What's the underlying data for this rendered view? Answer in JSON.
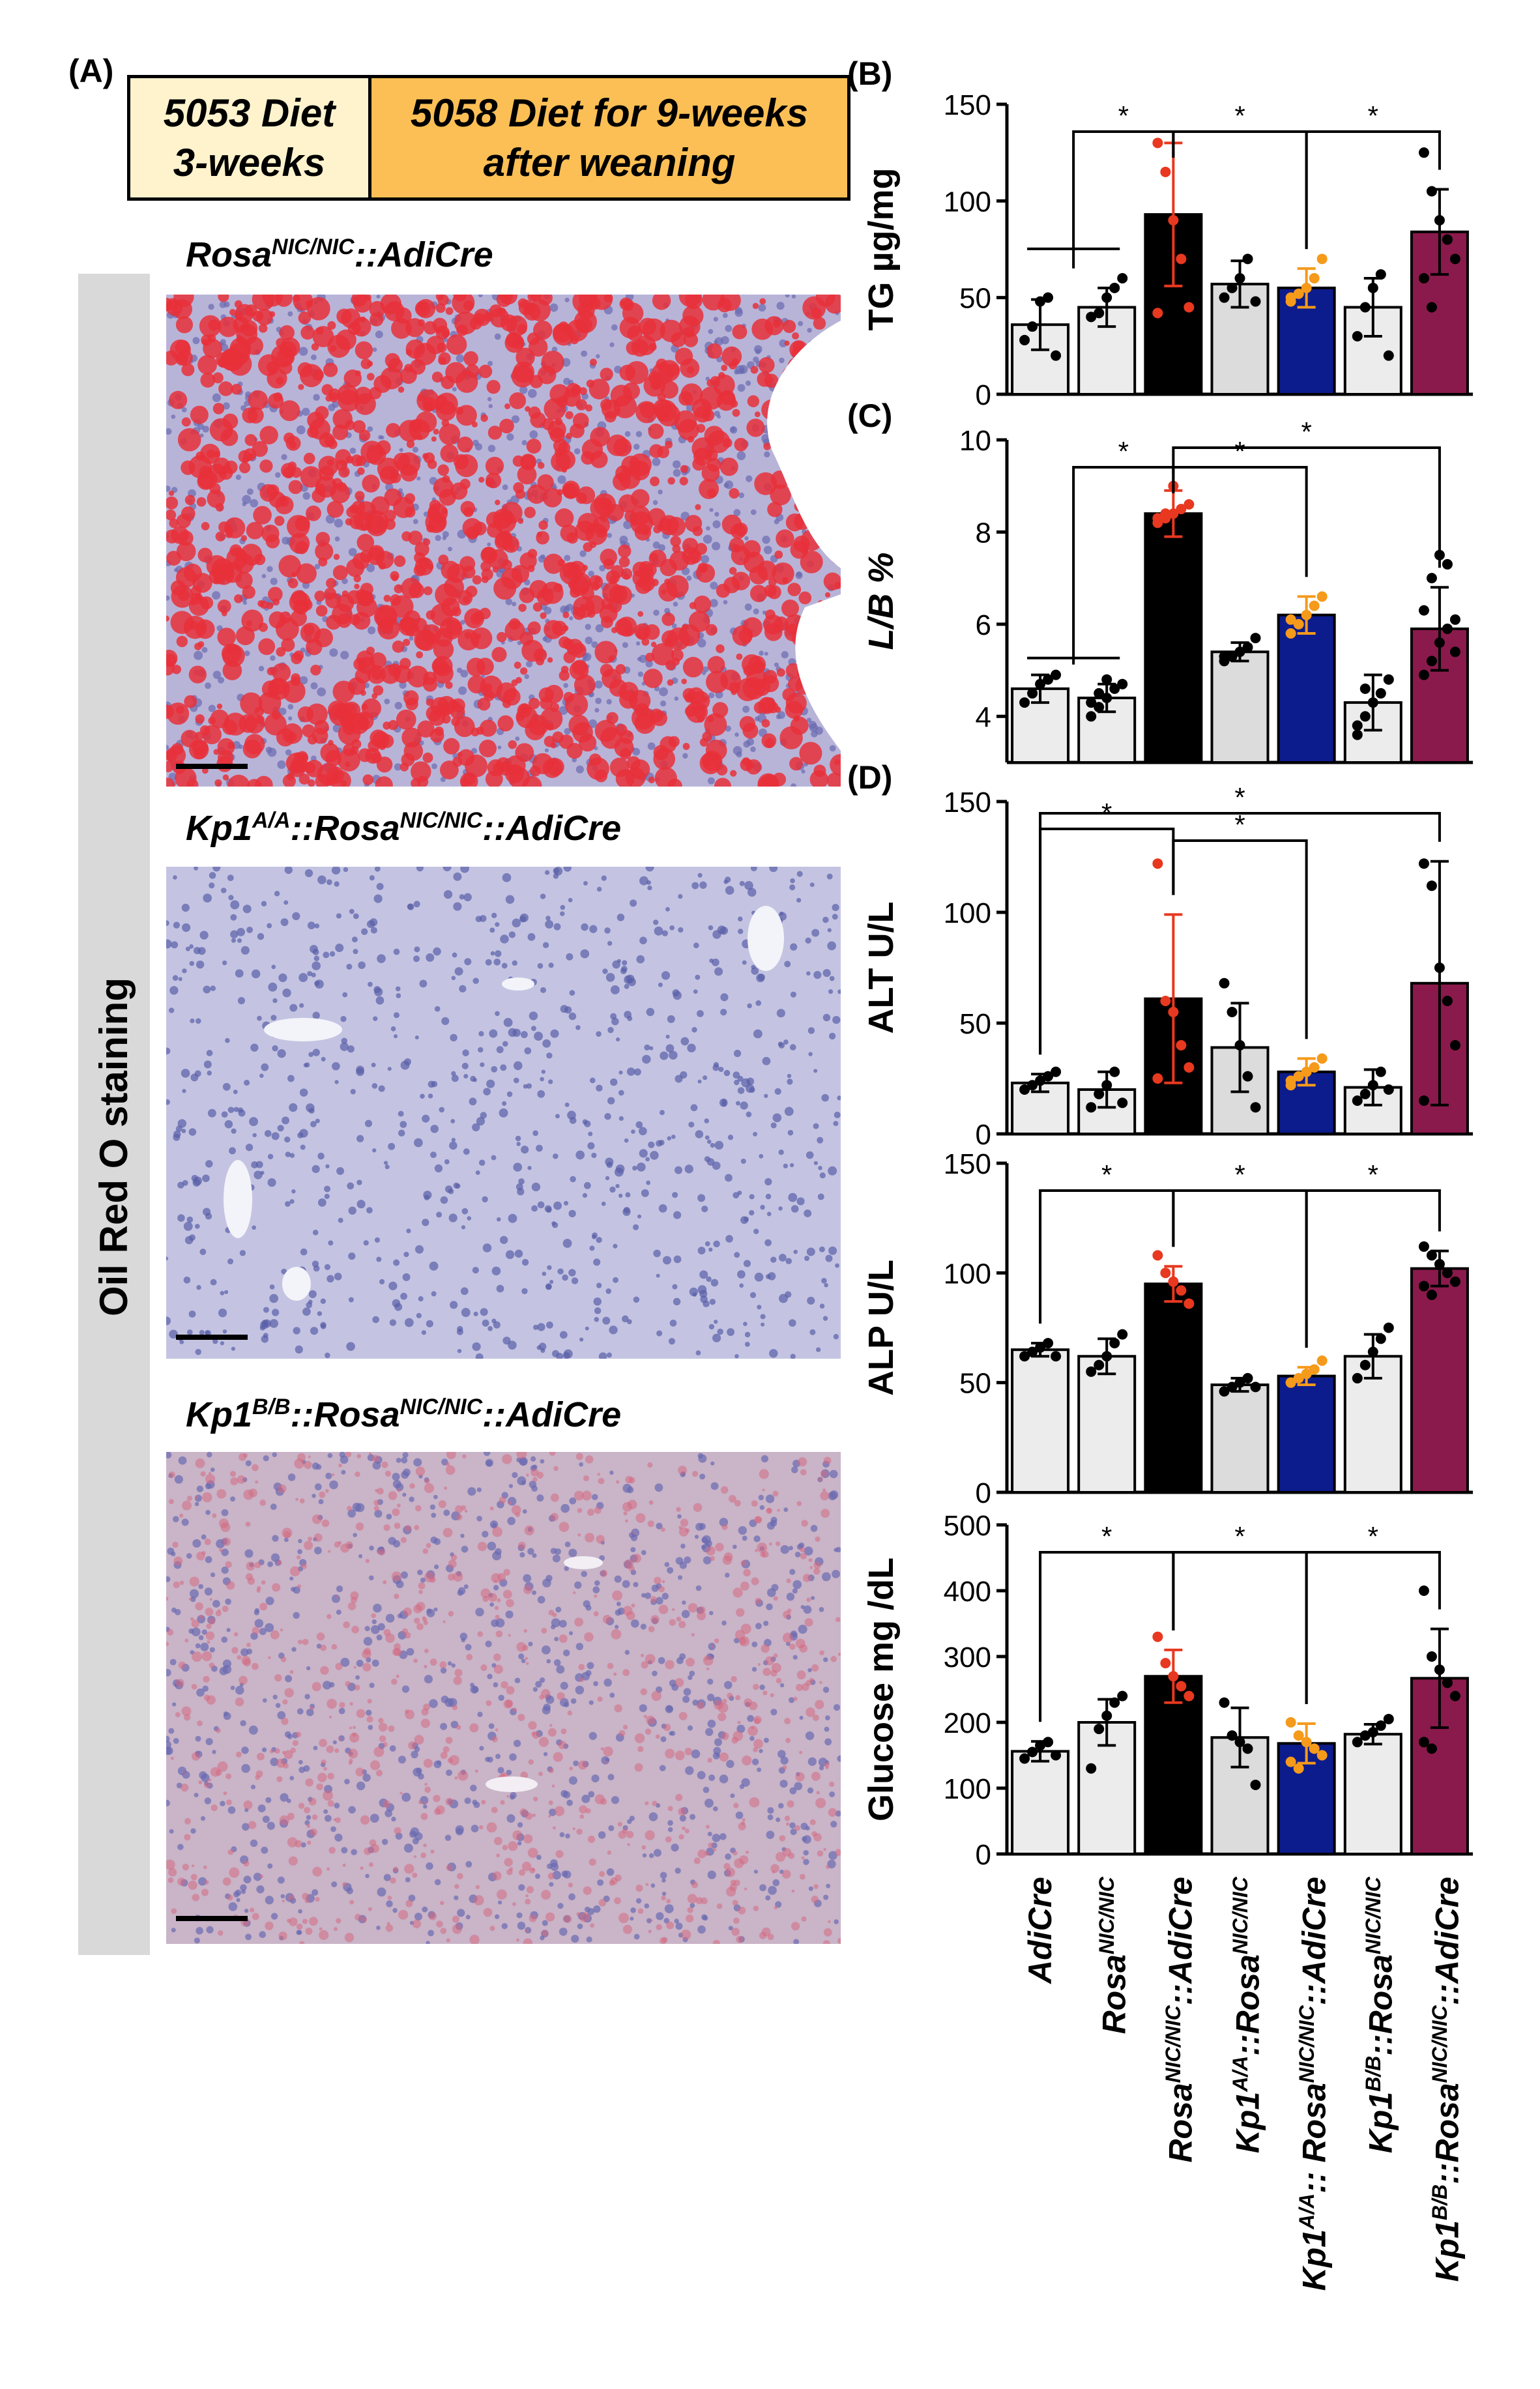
{
  "panel_a": {
    "letter": "(A)",
    "diet_box_1": [
      "5053 Diet",
      "3-weeks"
    ],
    "diet_box_2": [
      "5058 Diet for 9-weeks",
      "after weaning"
    ],
    "sidebar_label": "Oil Red O staining",
    "images": [
      {
        "title_main": "Rosa",
        "title_sup": "NIC/NIC",
        "title_tail": "::AdiCre",
        "stain": "heavy"
      },
      {
        "title_main": "Kp1",
        "title_sup": "A/A",
        "title_mid": "::Rosa",
        "title_sup2": "NIC/NIC",
        "title_tail": "::AdiCre",
        "stain": "none"
      },
      {
        "title_main": "Kp1",
        "title_sup": "B/B",
        "title_mid": "::Rosa",
        "title_sup2": "NIC/NIC",
        "title_tail": "::AdiCre",
        "stain": "light"
      }
    ],
    "colors": {
      "diet1": "#fff3cd",
      "diet2": "#fbbf55",
      "lipid": "#e8303a",
      "tissue": "#8a90c6",
      "sidebar": "#d9d9d9"
    }
  },
  "groups": [
    {
      "main": "AdiCre",
      "sup": "",
      "mid": "",
      "sup2": "",
      "tail": ""
    },
    {
      "main": "Rosa",
      "sup": "NIC/NIC",
      "mid": "",
      "sup2": "",
      "tail": ""
    },
    {
      "main": "Rosa",
      "sup": "NIC/NIC",
      "mid": "",
      "sup2": "",
      "tail": "::AdiCre"
    },
    {
      "main": "Kp1",
      "sup": "A/A",
      "mid": "::Rosa",
      "sup2": "NIC/NIC",
      "tail": ""
    },
    {
      "main": "Kp1",
      "sup": "A/A",
      "mid": ":: Rosa",
      "sup2": "NIC/NIC",
      "tail": "::AdiCre"
    },
    {
      "main": "Kp1",
      "sup": "B/B",
      "mid": "::Rosa",
      "sup2": "NIC/NIC",
      "tail": ""
    },
    {
      "main": "Kp1",
      "sup": "B/B",
      "mid": "::Rosa",
      "sup2": "NIC/NIC",
      "tail": "::AdiCre"
    }
  ],
  "bar_colors": [
    "#ececec",
    "#ececec",
    "#000000",
    "#dcdcdc",
    "#0d1c8c",
    "#ececec",
    "#8b1a4c"
  ],
  "point_colors": [
    "#000000",
    "#000000",
    "#e8381f",
    "#000000",
    "#f59a1b",
    "#000000",
    "#000000"
  ],
  "chart_data": [
    {
      "type": "bar",
      "panel": "(B)",
      "ylabel": "TG µg/mg",
      "ylabel_italic": false,
      "ylim": [
        0,
        150
      ],
      "yticks": [
        0,
        50,
        100,
        150
      ],
      "values": [
        36,
        45,
        93,
        57,
        55,
        45,
        84
      ],
      "errors": [
        13,
        10,
        37,
        12,
        10,
        15,
        22
      ],
      "points": [
        [
          28,
          35,
          48,
          50,
          20
        ],
        [
          40,
          42,
          50,
          55,
          60
        ],
        [
          130,
          115,
          90,
          70,
          45,
          42
        ],
        [
          50,
          55,
          60,
          70,
          48
        ],
        [
          50,
          52,
          55,
          60,
          70,
          48
        ],
        [
          30,
          45,
          55,
          62,
          20
        ],
        [
          125,
          105,
          90,
          80,
          70,
          60,
          45
        ]
      ],
      "brackets": [
        {
          "from": 0.5,
          "to": 2,
          "stars": "*"
        },
        {
          "from": 2,
          "to": 4,
          "stars": "*"
        },
        {
          "from": 4,
          "to": 6,
          "stars": "*"
        }
      ]
    },
    {
      "type": "bar",
      "panel": "(C)",
      "ylabel": "L/B %",
      "ylabel_italic": true,
      "ylim": [
        3,
        10
      ],
      "yticks": [
        4,
        6,
        8,
        10
      ],
      "values": [
        4.6,
        4.4,
        8.4,
        5.4,
        6.2,
        4.3,
        5.9
      ],
      "errors": [
        0.3,
        0.3,
        0.5,
        0.2,
        0.4,
        0.6,
        0.9
      ],
      "points": [
        [
          4.3,
          4.5,
          4.7,
          4.8,
          4.9
        ],
        [
          4.0,
          4.2,
          4.4,
          4.6,
          4.7,
          4.3,
          4.5,
          4.8
        ],
        [
          8.2,
          8.3,
          8.4,
          8.5,
          8.6,
          8.3,
          8.4,
          9.0
        ],
        [
          5.2,
          5.3,
          5.4,
          5.5,
          5.7,
          5.3
        ],
        [
          5.8,
          6.0,
          6.2,
          6.4,
          6.6,
          6.1
        ],
        [
          3.8,
          4.0,
          4.3,
          4.5,
          4.8,
          3.6,
          4.6
        ],
        [
          4.9,
          5.2,
          5.6,
          5.9,
          6.1,
          6.3,
          7.0,
          7.5,
          7.3,
          5.4
        ]
      ],
      "brackets": [
        {
          "from": 0.5,
          "to": 2,
          "stars": "*"
        },
        {
          "from": 2,
          "to": 4,
          "stars": "*"
        },
        {
          "from": 2,
          "to": 6,
          "stars": "*"
        }
      ]
    },
    {
      "type": "bar",
      "panel": "(D)",
      "ylabel": "ALT U/L",
      "ylabel_italic": false,
      "ylim": [
        0,
        150
      ],
      "yticks": [
        0,
        50,
        100,
        150
      ],
      "values": [
        23,
        20,
        61,
        39,
        28,
        21,
        68
      ],
      "errors": [
        4,
        8,
        38,
        20,
        6,
        8,
        55
      ],
      "points": [
        [
          20,
          22,
          24,
          26,
          28
        ],
        [
          12,
          18,
          22,
          28,
          14
        ],
        [
          122,
          60,
          55,
          40,
          30,
          25
        ],
        [
          68,
          55,
          40,
          26,
          12
        ],
        [
          22,
          26,
          28,
          30,
          34,
          24
        ],
        [
          15,
          18,
          22,
          28,
          20
        ],
        [
          122,
          112,
          75,
          60,
          40,
          15
        ]
      ],
      "brackets": [
        {
          "from": 0,
          "to": 2,
          "stars": "*"
        },
        {
          "from": 2,
          "to": 4,
          "stars": "*"
        },
        {
          "from": 0,
          "to": 6,
          "stars": "*"
        }
      ]
    },
    {
      "type": "bar",
      "panel": "",
      "ylabel": "ALP U/L",
      "ylabel_italic": false,
      "ylim": [
        0,
        150
      ],
      "yticks": [
        0,
        50,
        100,
        150
      ],
      "values": [
        65,
        62,
        95,
        49,
        53,
        62,
        102
      ],
      "errors": [
        3,
        8,
        8,
        3,
        4,
        10,
        8
      ],
      "points": [
        [
          62,
          64,
          66,
          68,
          62
        ],
        [
          55,
          58,
          62,
          68,
          72
        ],
        [
          108,
          100,
          96,
          92,
          86
        ],
        [
          46,
          48,
          50,
          52,
          48
        ],
        [
          50,
          52,
          54,
          56,
          60,
          50
        ],
        [
          52,
          58,
          64,
          70,
          75
        ],
        [
          112,
          108,
          104,
          100,
          96,
          94,
          90
        ]
      ],
      "brackets": [
        {
          "from": 0,
          "to": 2,
          "stars": "*"
        },
        {
          "from": 2,
          "to": 4,
          "stars": "*"
        },
        {
          "from": 4,
          "to": 6,
          "stars": "*"
        }
      ]
    },
    {
      "type": "bar",
      "panel": "",
      "ylabel": "Glucose mg /dL",
      "ylabel_italic": false,
      "ylim": [
        0,
        500
      ],
      "yticks": [
        0,
        100,
        200,
        300,
        400,
        500
      ],
      "values": [
        156,
        200,
        270,
        177,
        168,
        182,
        267
      ],
      "errors": [
        15,
        35,
        40,
        45,
        30,
        15,
        75
      ],
      "points": [
        [
          145,
          155,
          165,
          170,
          150
        ],
        [
          130,
          190,
          210,
          230,
          240
        ],
        [
          330,
          290,
          270,
          255,
          240
        ],
        [
          230,
          180,
          170,
          160,
          105
        ],
        [
          200,
          180,
          170,
          160,
          150,
          140,
          130
        ],
        [
          170,
          180,
          185,
          195,
          205
        ],
        [
          400,
          300,
          280,
          260,
          240,
          170,
          160
        ]
      ],
      "brackets": [
        {
          "from": 0,
          "to": 2,
          "stars": "*"
        },
        {
          "from": 2,
          "to": 4,
          "stars": "*"
        },
        {
          "from": 4,
          "to": 6,
          "stars": "*"
        }
      ]
    }
  ]
}
